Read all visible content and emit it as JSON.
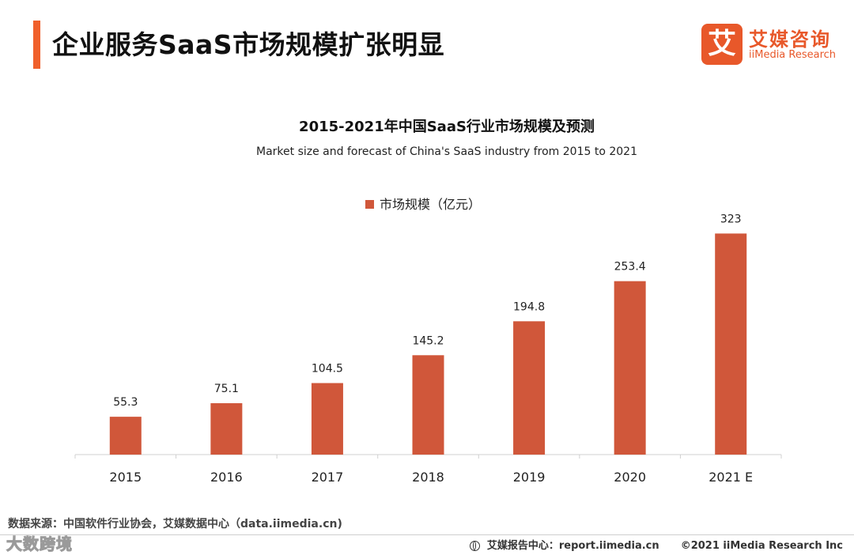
{
  "header": {
    "title": "企业服务SaaS市场规模扩张明显",
    "accent_color": "#f0602b"
  },
  "logo": {
    "mark": "艾",
    "name_cn": "艾媒咨询",
    "name_en": "iiMedia Research",
    "color": "#e8582a"
  },
  "chart_data": {
    "type": "bar",
    "title": "2015-2021年中国SaaS行业市场规模及预测",
    "subtitle": "Market size and forecast of China's SaaS industry from 2015 to 2021",
    "categories": [
      "2015",
      "2016",
      "2017",
      "2018",
      "2019",
      "2020",
      "2021 E"
    ],
    "series": [
      {
        "name": "市场规模（亿元）",
        "values": [
          55.3,
          75.1,
          104.5,
          145.2,
          194.8,
          253.4,
          323
        ],
        "labels": [
          "55.3",
          "75.1",
          "104.5",
          "145.2",
          "194.8",
          "253.4",
          "323"
        ],
        "color": "#d0573a"
      }
    ],
    "ylim": [
      0,
      350
    ],
    "grid": false,
    "legend": "top-center",
    "xlabel": "",
    "ylabel": ""
  },
  "footer": {
    "source": "数据来源：中国软件行业协会，艾媒数据中心（data.iimedia.cn)",
    "watermark": "大数跨境",
    "report_center": "艾媒报告中心：report.iimedia.cn",
    "copyright": "©2021  iiMedia Research  Inc"
  }
}
